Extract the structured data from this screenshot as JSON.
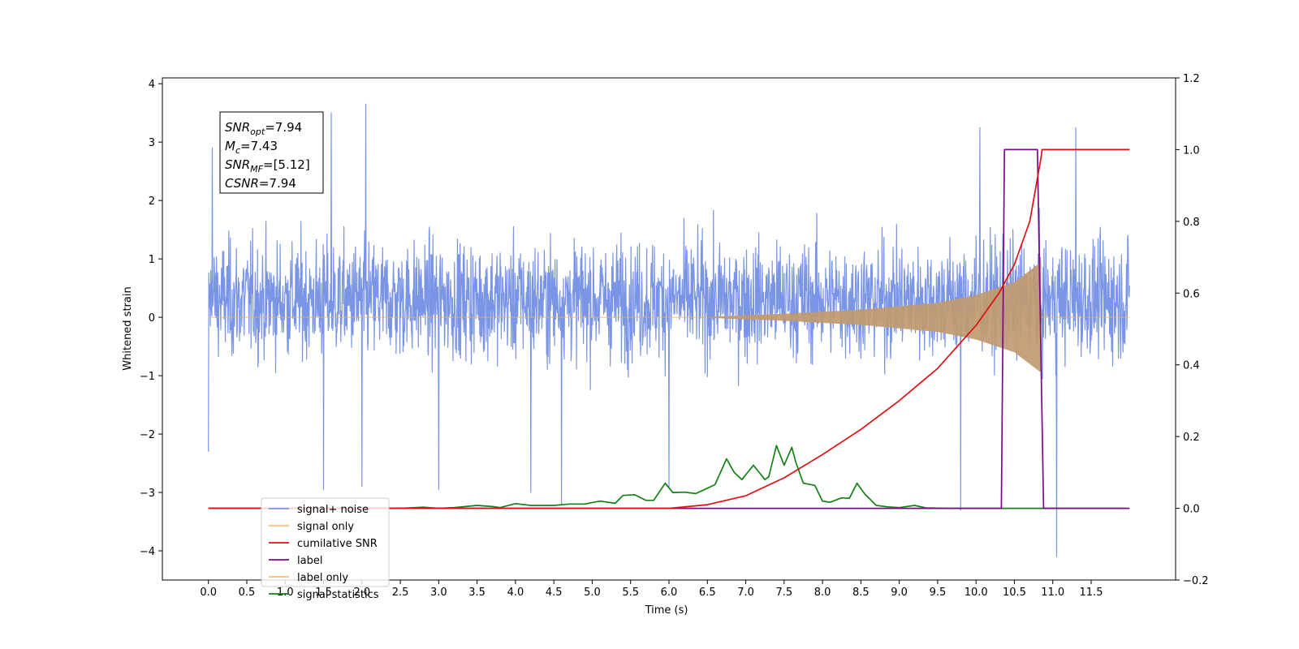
{
  "chart_data": {
    "type": "line",
    "title": "",
    "xlabel": "Time (s)",
    "ylabel": "Whitened strain",
    "xlim": [
      -0.6,
      12.6
    ],
    "ylim": [
      -4.5,
      4.1
    ],
    "y2lim": [
      -0.2,
      1.2
    ],
    "xticks": [
      "0.0",
      "0.5",
      "1.0",
      "1.5",
      "2.0",
      "2.5",
      "3.0",
      "3.5",
      "4.0",
      "4.5",
      "5.0",
      "5.5",
      "6.0",
      "6.5",
      "7.0",
      "7.5",
      "8.0",
      "8.5",
      "9.0",
      "9.5",
      "10.0",
      "10.5",
      "11.0",
      "11.5"
    ],
    "yticks": [
      "4",
      "3",
      "2",
      "1",
      "0",
      "−1",
      "−2",
      "−3",
      "−4"
    ],
    "y2ticks": [
      "1.2",
      "1.0",
      "0.8",
      "0.6",
      "0.4",
      "0.2",
      "0.0",
      "−0.2"
    ],
    "grid": false,
    "legend_position": "lower-left",
    "annotation": {
      "lines": [
        {
          "base": "SNR",
          "sub": "opt",
          "value": "=7.94"
        },
        {
          "base": "M",
          "sub": "c",
          "value": "=7.43"
        },
        {
          "base": "SNR",
          "sub": "MF",
          "value": "=[5.12]"
        },
        {
          "base": "CSNR",
          "sub": "",
          "value": "=7.94"
        }
      ]
    },
    "series": [
      {
        "name": "signal+ noise",
        "color": "#7a94e6",
        "axis": "left",
        "kind": "noise",
        "x_range": [
          0.0,
          12.0
        ],
        "typical_range": [
          -1.5,
          2.2
        ],
        "extremes": [
          [
            0.05,
            2.9
          ],
          [
            0.0,
            -2.3
          ],
          [
            1.6,
            3.5
          ],
          [
            2.05,
            3.65
          ],
          [
            1.5,
            -2.95
          ],
          [
            2.0,
            -2.9
          ],
          [
            3.0,
            -2.95
          ],
          [
            4.2,
            -3.0
          ],
          [
            4.6,
            -3.2
          ],
          [
            6.0,
            -2.9
          ],
          [
            9.8,
            -3.3
          ],
          [
            10.05,
            3.25
          ],
          [
            11.05,
            -4.1
          ],
          [
            11.3,
            3.25
          ]
        ]
      },
      {
        "name": "signal only",
        "color": "#f5b041",
        "axis": "left",
        "kind": "chirp",
        "x_range": [
          0.0,
          12.0
        ],
        "envelope_x": [
          6.5,
          7.5,
          8.5,
          9.5,
          10.0,
          10.5,
          10.85
        ],
        "envelope_y": [
          0.01,
          0.06,
          0.13,
          0.25,
          0.38,
          0.6,
          0.95
        ]
      },
      {
        "name": "cumilative SNR",
        "color": "#e01010",
        "axis": "right",
        "x": [
          0.0,
          6.0,
          6.5,
          7.0,
          7.5,
          8.0,
          8.5,
          9.0,
          9.5,
          10.0,
          10.3,
          10.5,
          10.7,
          10.85,
          10.86,
          12.0
        ],
        "y": [
          0.0,
          0.0,
          0.01,
          0.035,
          0.085,
          0.15,
          0.22,
          0.3,
          0.39,
          0.51,
          0.6,
          0.68,
          0.8,
          0.98,
          1.0,
          1.0
        ]
      },
      {
        "name": "label",
        "color": "#7a0a8a",
        "axis": "right",
        "x": [
          0.0,
          10.33,
          10.37,
          10.8,
          10.88,
          12.0
        ],
        "y": [
          0.0,
          0.0,
          1.0,
          1.0,
          0.0,
          0.0
        ]
      },
      {
        "name": "signal statistics",
        "color": "#138013",
        "axis": "right",
        "x": [
          0.0,
          2.5,
          2.8,
          3.0,
          3.2,
          3.5,
          3.7,
          3.8,
          4.0,
          4.2,
          4.5,
          4.7,
          4.9,
          5.1,
          5.3,
          5.4,
          5.55,
          5.7,
          5.8,
          5.95,
          6.05,
          6.2,
          6.35,
          6.5,
          6.6,
          6.75,
          6.85,
          6.95,
          7.1,
          7.25,
          7.3,
          7.4,
          7.5,
          7.6,
          7.65,
          7.75,
          7.9,
          8.0,
          8.1,
          8.25,
          8.35,
          8.45,
          8.55,
          8.7,
          8.85,
          9.0,
          9.2,
          9.35,
          9.6,
          10.0,
          11.94
        ],
        "y": [
          0.0,
          0.0,
          0.003,
          0.0,
          0.002,
          0.008,
          0.005,
          0.002,
          0.013,
          0.008,
          0.008,
          0.012,
          0.012,
          0.02,
          0.014,
          0.036,
          0.038,
          0.022,
          0.022,
          0.07,
          0.044,
          0.045,
          0.041,
          0.056,
          0.066,
          0.138,
          0.1,
          0.08,
          0.12,
          0.08,
          0.088,
          0.175,
          0.12,
          0.17,
          0.13,
          0.07,
          0.064,
          0.02,
          0.017,
          0.029,
          0.028,
          0.07,
          0.04,
          0.008,
          0.004,
          0.002,
          0.008,
          0.001,
          0.0,
          0.0,
          0.0
        ]
      }
    ]
  },
  "legend": {
    "entries": [
      "signal+ noise",
      "signal only",
      "cumilative SNR",
      "label",
      "label only",
      "signal statistics"
    ],
    "legend_order_colors": [
      "#7a94e6",
      "#f5c36b",
      "#e01010",
      "#7a0a8a",
      "#f5c36b",
      "#138013"
    ]
  }
}
